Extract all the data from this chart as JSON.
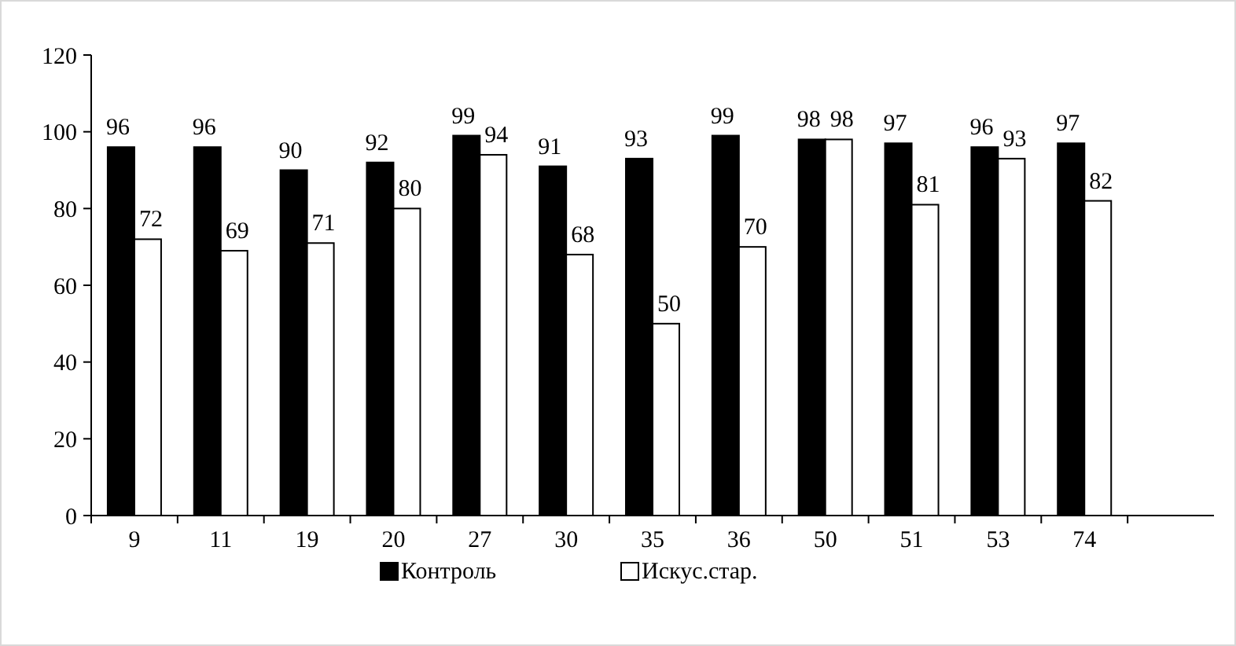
{
  "chart_data": {
    "type": "bar",
    "categories": [
      "9",
      "11",
      "19",
      "20",
      "27",
      "30",
      "35",
      "36",
      "50",
      "51",
      "53",
      "74",
      null
    ],
    "series": [
      {
        "name": "Контроль",
        "color": "#000000",
        "values": [
          96,
          96,
          90,
          92,
          99,
          91,
          93,
          99,
          98,
          97,
          96,
          97,
          null
        ]
      },
      {
        "name": "Искус.стар.",
        "color": "#ffffff",
        "values": [
          72,
          69,
          71,
          80,
          94,
          68,
          50,
          70,
          98,
          81,
          93,
          82,
          null
        ]
      }
    ],
    "ylim": [
      0,
      120
    ],
    "yticks": [
      0,
      20,
      40,
      60,
      80,
      100,
      120
    ],
    "grid": false,
    "legend": "bottom",
    "data_labels": true
  }
}
